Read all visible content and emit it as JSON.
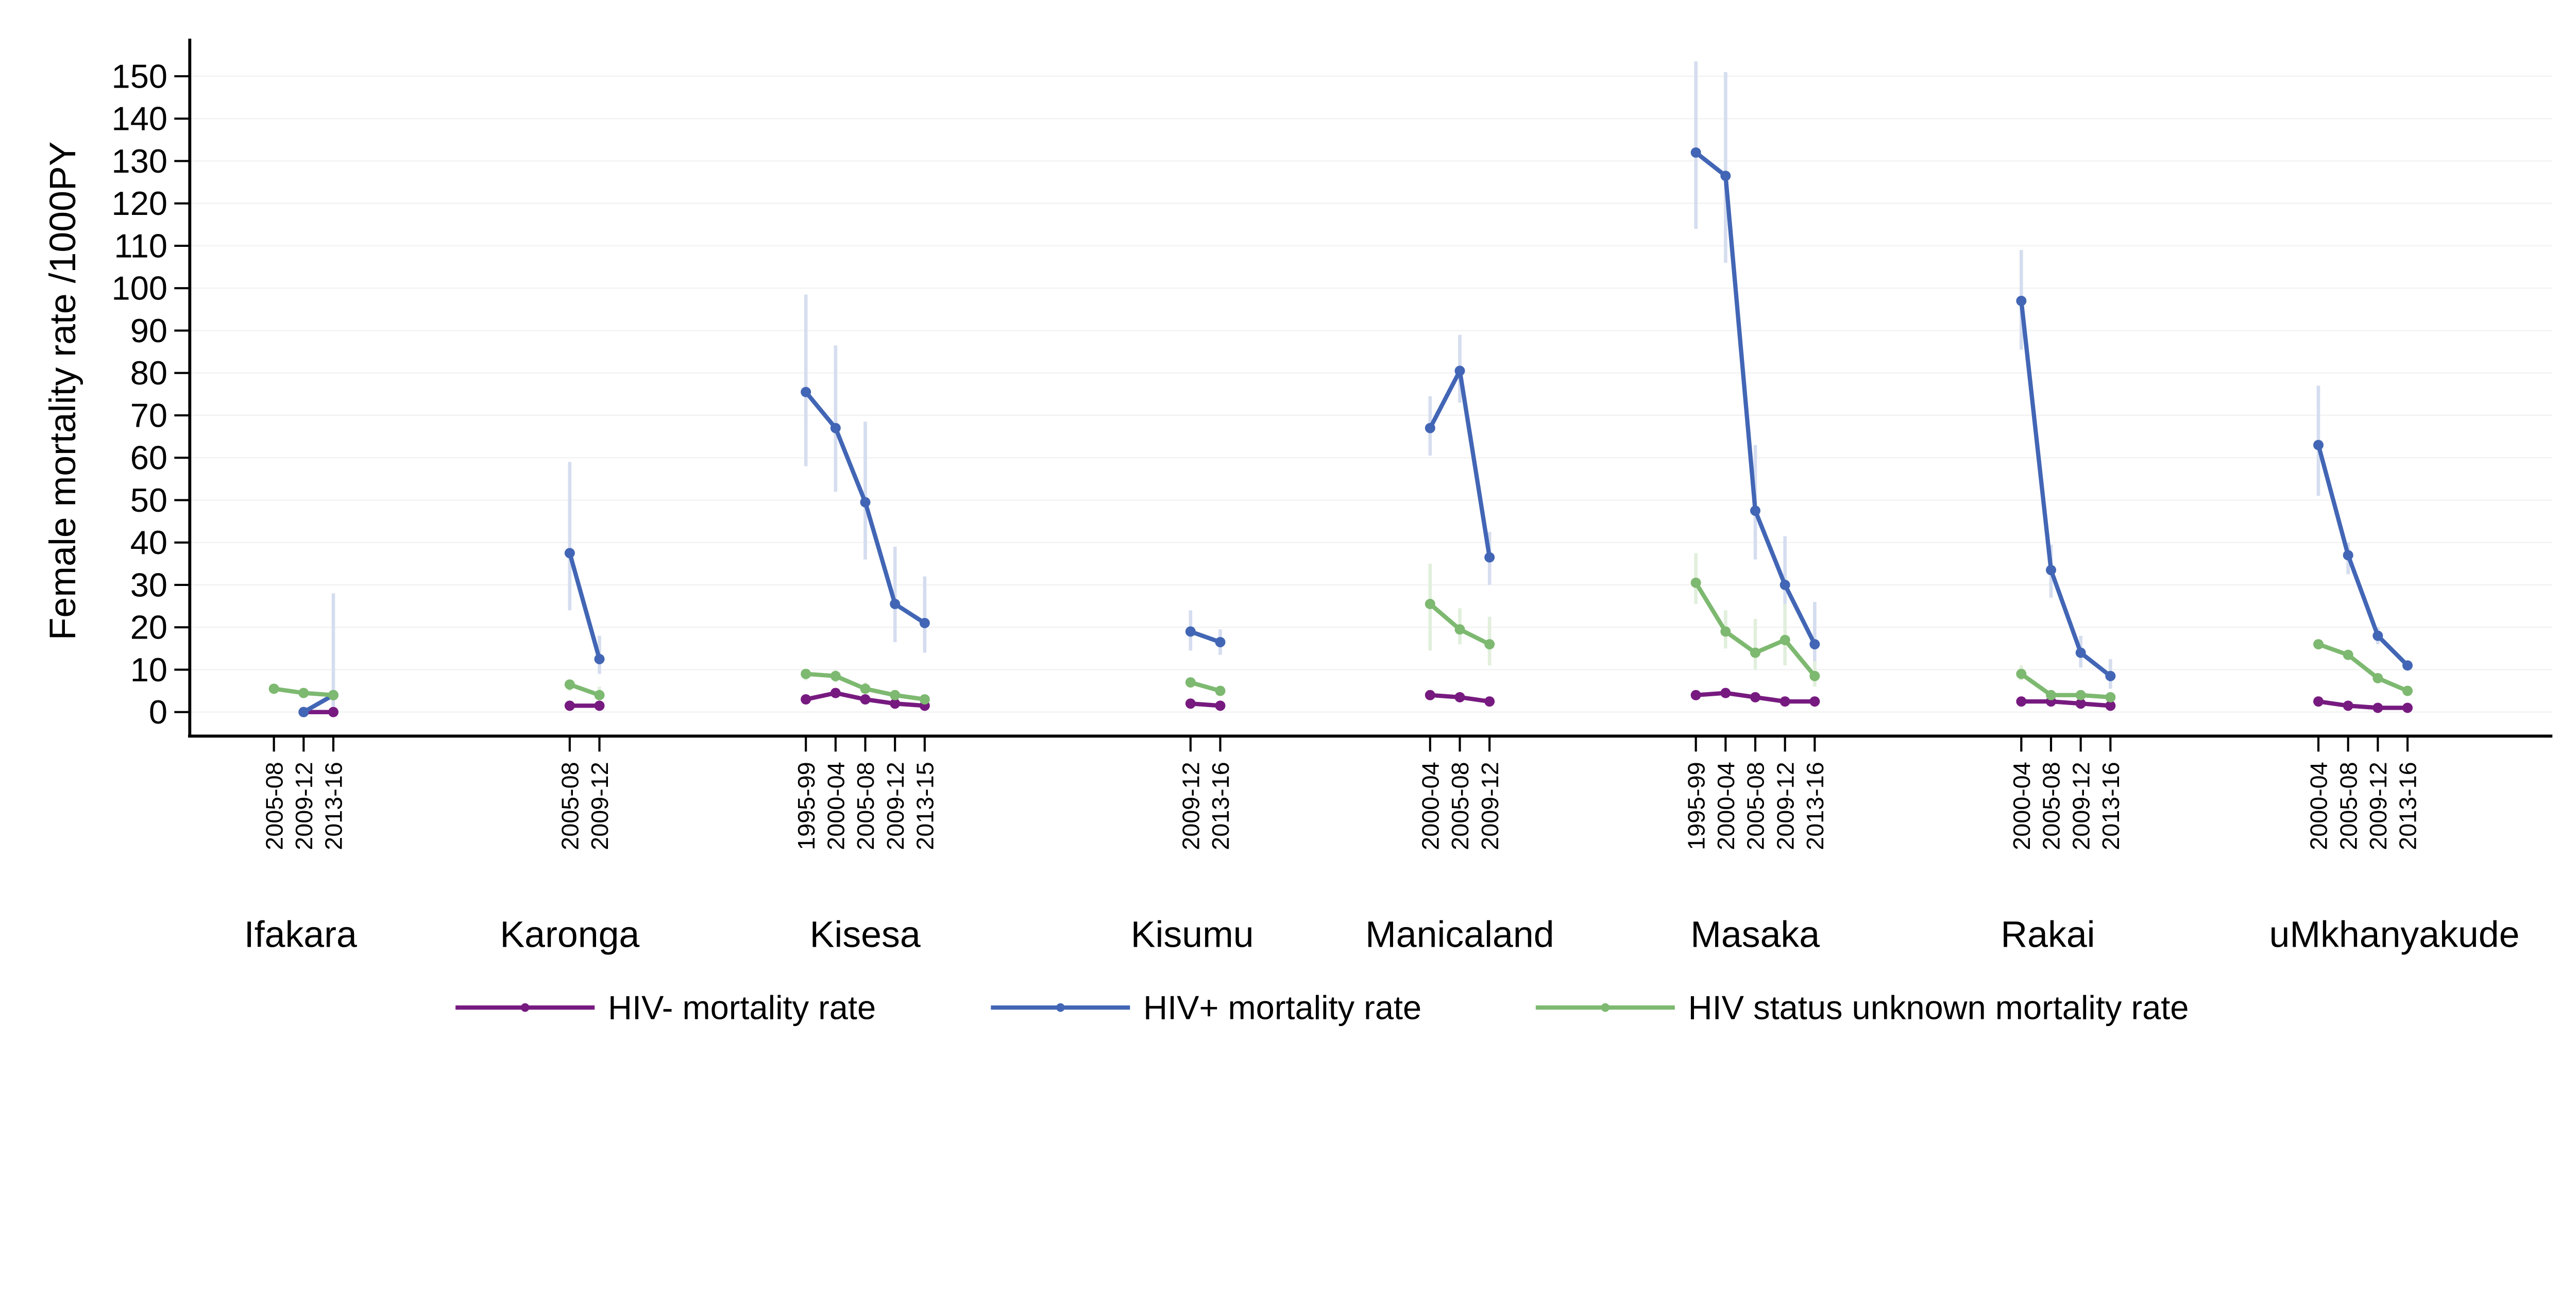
{
  "chart_data": {
    "type": "line",
    "ylabel": "Female mortality rate /1000PY",
    "ylim": [
      -5,
      158
    ],
    "yticks": [
      0,
      10,
      20,
      30,
      40,
      50,
      60,
      70,
      80,
      90,
      100,
      110,
      120,
      130,
      140,
      150
    ],
    "grid": true,
    "legend_position": "bottom",
    "series": [
      {
        "key": "neg",
        "name": "HIV- mortality rate",
        "color": "#771a80",
        "ci_color": "#d9c3dc"
      },
      {
        "key": "pos",
        "name": "HIV+ mortality rate",
        "color": "#4266b5",
        "ci_color": "#d5ddef"
      },
      {
        "key": "unk",
        "name": "HIV status unknown mortality rate",
        "color": "#7db970",
        "ci_color": "#e1efdc"
      }
    ],
    "sites": [
      {
        "name": "Ifakara",
        "periods": [
          "2005-08",
          "2009-12",
          "2013-16"
        ],
        "neg": [
          null,
          0,
          0
        ],
        "pos": [
          null,
          0,
          4
        ],
        "pos_ci": [
          null,
          null,
          [
            0,
            28
          ]
        ],
        "unk": [
          5.5,
          4.5,
          4
        ],
        "unk_ci": [
          null,
          null,
          null
        ]
      },
      {
        "name": "Karonga",
        "periods": [
          "2005-08",
          "2009-12"
        ],
        "neg": [
          1.5,
          1.5
        ],
        "pos": [
          37.5,
          12.5
        ],
        "pos_ci": [
          [
            24,
            59
          ],
          [
            9,
            18
          ]
        ],
        "unk": [
          6.5,
          4
        ],
        "unk_ci": [
          [
            5,
            7.5
          ],
          [
            3,
            6
          ]
        ]
      },
      {
        "name": "Kisesa",
        "periods": [
          "1995-99",
          "2000-04",
          "2005-08",
          "2009-12",
          "2013-15"
        ],
        "neg": [
          3,
          4.5,
          3,
          2,
          1.5
        ],
        "pos": [
          75.5,
          67,
          49.5,
          25.5,
          21
        ],
        "pos_ci": [
          [
            58,
            98.5
          ],
          [
            52,
            86.5
          ],
          [
            36,
            68.5
          ],
          [
            16.5,
            39
          ],
          [
            14,
            32
          ]
        ],
        "unk": [
          9,
          8.5,
          5.5,
          4,
          3
        ],
        "unk_ci": [
          [
            7.5,
            10
          ],
          [
            7,
            10
          ],
          [
            4.5,
            7
          ],
          null,
          null
        ]
      },
      {
        "name": "Kisumu",
        "periods": [
          "2009-12",
          "2013-16"
        ],
        "neg": [
          2,
          1.5
        ],
        "pos": [
          19,
          16.5
        ],
        "pos_ci": [
          [
            14.5,
            24
          ],
          [
            13.5,
            19.5
          ]
        ],
        "unk": [
          7,
          5
        ],
        "unk_ci": [
          null,
          null
        ]
      },
      {
        "name": "Manicaland",
        "periods": [
          "2000-04",
          "2005-08",
          "2009-12"
        ],
        "neg": [
          4,
          3.5,
          2.5
        ],
        "pos": [
          67,
          80.5,
          36.5
        ],
        "pos_ci": [
          [
            60.5,
            74.5
          ],
          [
            73,
            89
          ],
          [
            30,
            42.5
          ]
        ],
        "unk": [
          25.5,
          19.5,
          16
        ],
        "unk_ci": [
          [
            14.5,
            35
          ],
          [
            16,
            24.5
          ],
          [
            11,
            22.5
          ]
        ]
      },
      {
        "name": "Masaka",
        "periods": [
          "1995-99",
          "2000-04",
          "2005-08",
          "2009-12",
          "2013-16"
        ],
        "neg": [
          4,
          4.5,
          3.5,
          2.5,
          2.5
        ],
        "pos": [
          132,
          126.5,
          47.5,
          30,
          16
        ],
        "pos_ci": [
          [
            114,
            153.5
          ],
          [
            106,
            151
          ],
          [
            36,
            63
          ],
          [
            20,
            41.5
          ],
          [
            9,
            26
          ]
        ],
        "unk": [
          30.5,
          19,
          14,
          17,
          8.5
        ],
        "unk_ci": [
          [
            25.5,
            37.5
          ],
          [
            15,
            24
          ],
          [
            10,
            22
          ],
          [
            11,
            25.5
          ],
          [
            6,
            12
          ]
        ]
      },
      {
        "name": "Rakai",
        "periods": [
          "2000-04",
          "2005-08",
          "2009-12",
          "2013-16"
        ],
        "neg": [
          2.5,
          2.5,
          2,
          1.5
        ],
        "pos": [
          97,
          33.5,
          14,
          8.5
        ],
        "pos_ci": [
          [
            85.5,
            109
          ],
          [
            27,
            39.5
          ],
          [
            10.5,
            18
          ],
          [
            5.5,
            12.5
          ]
        ],
        "unk": [
          9,
          4,
          4,
          3.5
        ],
        "unk_ci": [
          [
            7.5,
            11
          ],
          [
            3,
            5
          ],
          [
            3,
            5
          ],
          null
        ]
      },
      {
        "name": "uMkhanyakude",
        "periods": [
          "2000-04",
          "2005-08",
          "2009-12",
          "2013-16"
        ],
        "neg": [
          2.5,
          1.5,
          1,
          1
        ],
        "pos": [
          63,
          37,
          18,
          11
        ],
        "pos_ci": [
          [
            51,
            77
          ],
          [
            32.5,
            40
          ],
          [
            16,
            20
          ],
          [
            10,
            12
          ]
        ],
        "unk": [
          16,
          13.5,
          8,
          5
        ],
        "unk_ci": [
          null,
          null,
          null,
          null
        ]
      }
    ]
  }
}
